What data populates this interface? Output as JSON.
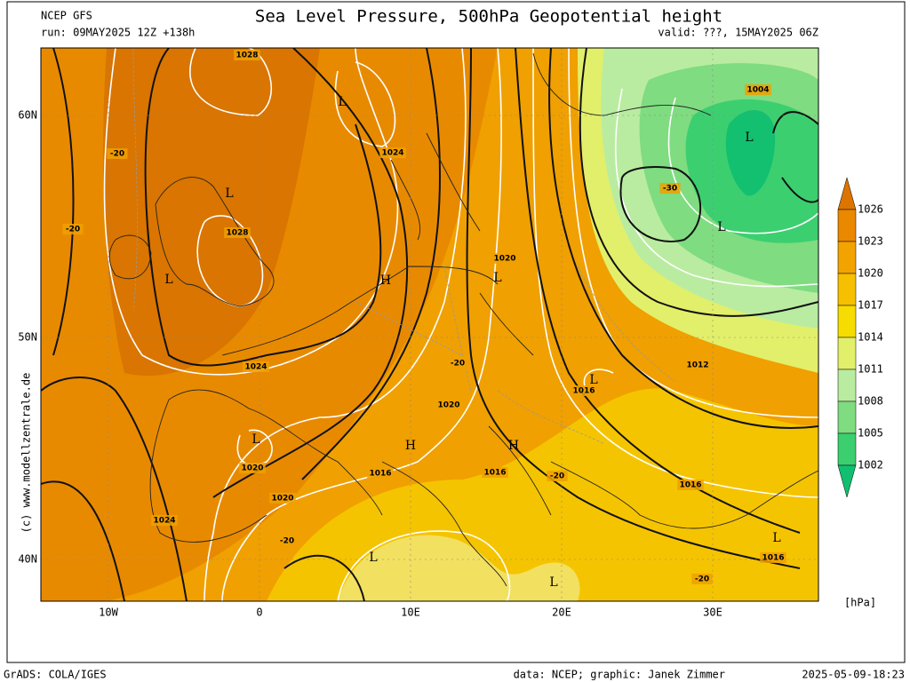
{
  "header": {
    "model": "NCEP GFS",
    "title": "Sea Level Pressure, 500hPa Geopotential height",
    "run": "run: 09MAY2025 12Z +138h",
    "valid": "valid: ???, 15MAY2025 06Z"
  },
  "map": {
    "lat_labels": [
      "60N",
      "50N",
      "40N"
    ],
    "lon_labels": [
      "10W",
      "0",
      "10E",
      "20E",
      "30E"
    ],
    "side_credit": "(c) www.modellzentrale.de",
    "labels": [
      "1028",
      "L",
      "1024",
      "-20",
      "L",
      "-20",
      "1028",
      "L",
      "H",
      "1020",
      "L",
      "-30",
      "1004",
      "L",
      "L",
      "-20",
      "1024",
      "1012",
      "1016",
      "L",
      "1020",
      "H",
      "H",
      "L",
      "1020",
      "1016",
      "1016",
      "-20",
      "1016",
      "1020",
      "1024",
      "-20",
      "L",
      "1016",
      "L",
      "L",
      "-20"
    ]
  },
  "colorbar": {
    "labels": [
      "1026",
      "1023",
      "1020",
      "1017",
      "1014",
      "1011",
      "1008",
      "1005",
      "1002"
    ],
    "unit": "[hPa]"
  },
  "footer": {
    "left": "GrADS: COLA/IGES",
    "center": "data: NCEP; graphic: Janek Zimmer",
    "right": "2025-05-09-18:23"
  }
}
